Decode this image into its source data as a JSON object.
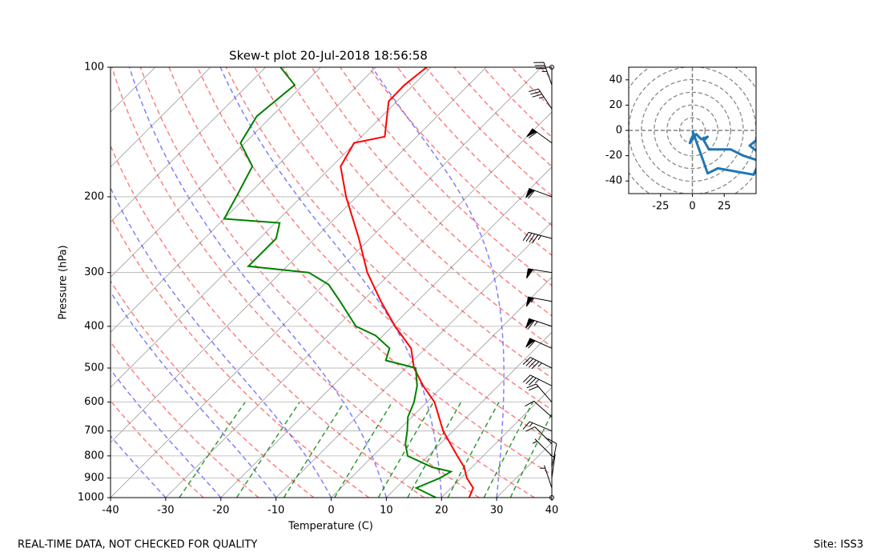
{
  "chart_data": [
    {
      "type": "skewt",
      "title": "Skew-t plot 20-Jul-2018 18:56:58",
      "x_label": "Temperature (C)",
      "y_label": "Pressure (hPa)",
      "xlim": [
        -40,
        40
      ],
      "ylim": [
        1000,
        100
      ],
      "log_y": true,
      "grid": true,
      "xticks": [
        -40,
        -30,
        -20,
        -10,
        0,
        10,
        20,
        30,
        40
      ],
      "yticks": [
        100,
        200,
        300,
        400,
        500,
        600,
        700,
        800,
        900,
        1000
      ],
      "series": [
        {
          "color": "#ff0000",
          "pressure": [
            1000,
            950,
            900,
            850,
            800,
            700,
            600,
            550,
            500,
            450,
            400,
            350,
            300,
            250,
            200,
            170,
            150,
            145,
            120,
            110,
            100
          ],
          "temperature": [
            25,
            24,
            21,
            18.6,
            15.3,
            8.2,
            1.4,
            -3.6,
            -8.5,
            -12.6,
            -19.5,
            -26.6,
            -34.3,
            -42,
            -51.9,
            -58.4,
            -60.2,
            -55.8,
            -61.5,
            -61.6,
            -60.8
          ]
        },
        {
          "color": "#008000",
          "pressure": [
            1000,
            950,
            900,
            870,
            850,
            800,
            750,
            700,
            650,
            600,
            550,
            500,
            480,
            450,
            420,
            400,
            350,
            320,
            300,
            290,
            250,
            230,
            225,
            200,
            170,
            150,
            130,
            110,
            100
          ],
          "temperature": [
            19,
            13.7,
            16.2,
            17,
            12.8,
            6.3,
            3.7,
            1.7,
            -0.7,
            -2.3,
            -4.7,
            -8.2,
            -15,
            -16.5,
            -21.4,
            -26.6,
            -34,
            -39.1,
            -44.9,
            -57,
            -57,
            -59.2,
            -70,
            -71.8,
            -74.4,
            -80.8,
            -82.7,
            -81.5,
            -87.3
          ]
        }
      ],
      "wind": {
        "pressure": [
          1000,
          950,
          900,
          850,
          800,
          750,
          700,
          650,
          600,
          550,
          500,
          450,
          400,
          350,
          300,
          250,
          200,
          150,
          125,
          110,
          100
        ],
        "u": [
          0,
          1,
          -1,
          -2,
          3,
          7,
          12,
          9,
          13,
          30,
          40,
          55,
          60,
          55,
          50,
          45,
          55,
          48,
          20,
          12,
          0
        ],
        "v": [
          0,
          -3,
          -7,
          -10,
          -3,
          -7,
          -5,
          -8,
          -15,
          -15,
          -20,
          -25,
          -20,
          -10,
          -8,
          -12,
          -20,
          -35,
          -30,
          -34,
          0
        ]
      }
    },
    {
      "type": "hodograph",
      "color": "#1f77b4",
      "xlim": [
        -50,
        50
      ],
      "ylim": [
        -50,
        50
      ],
      "xticks": [
        -25,
        0,
        25
      ],
      "yticks": [
        -40,
        -20,
        0,
        20,
        40
      ]
    }
  ],
  "footer": {
    "left": "REAL-TIME DATA, NOT CHECKED FOR QUALITY",
    "right": "Site: ISS3"
  }
}
